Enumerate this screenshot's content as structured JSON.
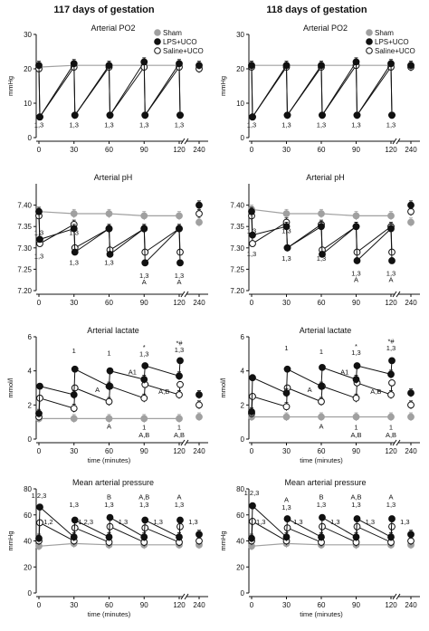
{
  "figure": {
    "column_titles": [
      "117 days of gestation",
      "118 days of gestation"
    ]
  },
  "legend": [
    {
      "name": "Sham",
      "fill": "#a0a0a0",
      "stroke": "#a0a0a0"
    },
    {
      "name": "LPS+UCO",
      "fill": "#111111",
      "stroke": "#111111"
    },
    {
      "name": "Saline+UCO",
      "fill": "#ffffff",
      "stroke": "#111111"
    }
  ],
  "chart_data": [
    {
      "type": "line",
      "col": 0,
      "row": 0,
      "title": "Arterial PO2",
      "ylabel": "mmHg",
      "xlabel": "",
      "ylim": [
        0,
        30
      ],
      "yticks": [
        0,
        10,
        20,
        30
      ],
      "ytick_labels": [
        "0",
        "10",
        "20",
        "30"
      ],
      "x": [
        0,
        30,
        60,
        90,
        120,
        240
      ],
      "xticks": [
        "0",
        "30",
        "60",
        "90",
        "120",
        "240"
      ],
      "series": [
        {
          "name": "Sham",
          "baseline": [
            20.5,
            21,
            21,
            21,
            21,
            20.5
          ],
          "uco": null
        },
        {
          "name": "LPS+UCO",
          "baseline": [
            21,
            21.5,
            21,
            22,
            21.5,
            21
          ],
          "uco": [
            6,
            6.5,
            6.5,
            6.5,
            6.5
          ]
        },
        {
          "name": "Saline+UCO",
          "baseline": [
            20,
            20.5,
            20.5,
            20.5,
            20.5,
            20
          ],
          "uco": [
            6,
            6.5,
            6.5,
            6.5,
            6.5
          ]
        }
      ],
      "annotations": [
        {
          "x": 0,
          "y": 3,
          "text": "1,3"
        },
        {
          "x": 30,
          "y": 3,
          "text": "1,3"
        },
        {
          "x": 60,
          "y": 3,
          "text": "1,3"
        },
        {
          "x": 90,
          "y": 3,
          "text": "1,3"
        },
        {
          "x": 120,
          "y": 3,
          "text": "1,3"
        }
      ]
    },
    {
      "type": "line",
      "col": 1,
      "row": 0,
      "title": "Arterial PO2",
      "ylabel": "mmHg",
      "xlabel": "",
      "ylim": [
        0,
        30
      ],
      "yticks": [
        0,
        10,
        20,
        30
      ],
      "ytick_labels": [
        "0",
        "10",
        "20",
        "30"
      ],
      "x": [
        0,
        30,
        60,
        90,
        120,
        240
      ],
      "xticks": [
        "0",
        "30",
        "60",
        "90",
        "120",
        "240"
      ],
      "series": [
        {
          "name": "Sham",
          "baseline": [
            21,
            21,
            21,
            21,
            21,
            21
          ],
          "uco": null
        },
        {
          "name": "LPS+UCO",
          "baseline": [
            21,
            21,
            21,
            22,
            21.5,
            21
          ],
          "uco": [
            6,
            6.5,
            6.5,
            6.5,
            6.5
          ]
        },
        {
          "name": "Saline+UCO",
          "baseline": [
            20.5,
            20.5,
            20.5,
            21,
            20.5,
            20.5
          ],
          "uco": [
            6,
            6.5,
            6.5,
            6.5,
            6.5
          ]
        }
      ],
      "annotations": [
        {
          "x": 0,
          "y": 3,
          "text": "1,3"
        },
        {
          "x": 30,
          "y": 3,
          "text": "1,3"
        },
        {
          "x": 60,
          "y": 3,
          "text": "1,3"
        },
        {
          "x": 90,
          "y": 3,
          "text": "1,3"
        },
        {
          "x": 120,
          "y": 3,
          "text": "1,3"
        }
      ]
    },
    {
      "type": "line",
      "col": 0,
      "row": 1,
      "title": "Arterial pH",
      "ylabel": "",
      "xlabel": "",
      "ylim": [
        7.2,
        7.45
      ],
      "yticks": [
        7.2,
        7.25,
        7.3,
        7.35,
        7.4
      ],
      "ytick_labels": [
        "7.20",
        "7.25",
        "7.30",
        "7.35",
        "7.40"
      ],
      "x": [
        0,
        30,
        60,
        90,
        120,
        240
      ],
      "xticks": [
        "0",
        "30",
        "60",
        "90",
        "120",
        "240"
      ],
      "series": [
        {
          "name": "Sham",
          "baseline": [
            7.385,
            7.38,
            7.38,
            7.375,
            7.375,
            7.36
          ],
          "uco": null
        },
        {
          "name": "LPS+UCO",
          "baseline": [
            7.385,
            7.345,
            7.345,
            7.345,
            7.345,
            7.4
          ],
          "uco": [
            7.32,
            7.29,
            7.285,
            7.265,
            7.265
          ]
        },
        {
          "name": "Saline+UCO",
          "baseline": [
            7.375,
            7.355,
            7.345,
            7.345,
            7.345,
            7.38
          ],
          "uco": [
            7.31,
            7.3,
            7.295,
            7.29,
            7.29
          ]
        }
      ],
      "annotations": [
        {
          "x": 0,
          "y": 7.33,
          "text": "1,3"
        },
        {
          "x": 30,
          "y": 7.33,
          "text": "1,3"
        },
        {
          "x": 0,
          "y": 7.275,
          "text": "1,3"
        },
        {
          "x": 30,
          "y": 7.26,
          "text": "1,3"
        },
        {
          "x": 60,
          "y": 7.26,
          "text": "1,3"
        },
        {
          "x": 90,
          "y": 7.23,
          "text": "1,3"
        },
        {
          "x": 90,
          "y": 7.215,
          "text": "A"
        },
        {
          "x": 120,
          "y": 7.23,
          "text": "1,3"
        },
        {
          "x": 120,
          "y": 7.215,
          "text": "A"
        }
      ]
    },
    {
      "type": "line",
      "col": 1,
      "row": 1,
      "title": "Arterial pH",
      "ylabel": "",
      "xlabel": "",
      "ylim": [
        7.2,
        7.45
      ],
      "yticks": [
        7.2,
        7.25,
        7.3,
        7.35,
        7.4
      ],
      "ytick_labels": [
        "7.20",
        "7.25",
        "7.30",
        "7.35",
        "7.40"
      ],
      "x": [
        0,
        30,
        60,
        90,
        120,
        240
      ],
      "xticks": [
        "0",
        "30",
        "60",
        "90",
        "120",
        "240"
      ],
      "series": [
        {
          "name": "Sham",
          "baseline": [
            7.39,
            7.38,
            7.38,
            7.375,
            7.375,
            7.36
          ],
          "uco": null
        },
        {
          "name": "LPS+UCO",
          "baseline": [
            7.385,
            7.35,
            7.35,
            7.35,
            7.345,
            7.4
          ],
          "uco": [
            7.33,
            7.3,
            7.285,
            7.27,
            7.27
          ]
        },
        {
          "name": "Saline+UCO",
          "baseline": [
            7.375,
            7.36,
            7.355,
            7.35,
            7.35,
            7.385
          ],
          "uco": [
            7.31,
            7.3,
            7.295,
            7.29,
            7.29
          ]
        }
      ],
      "annotations": [
        {
          "x": 0,
          "y": 7.335,
          "text": "1,3"
        },
        {
          "x": 30,
          "y": 7.335,
          "text": "1,3"
        },
        {
          "x": 0,
          "y": 7.28,
          "text": "1,3"
        },
        {
          "x": 30,
          "y": 7.27,
          "text": "1,3"
        },
        {
          "x": 60,
          "y": 7.27,
          "text": "1,3"
        },
        {
          "x": 90,
          "y": 7.235,
          "text": "1,3"
        },
        {
          "x": 90,
          "y": 7.22,
          "text": "A"
        },
        {
          "x": 120,
          "y": 7.235,
          "text": "1,3"
        },
        {
          "x": 120,
          "y": 7.22,
          "text": "A"
        }
      ]
    },
    {
      "type": "line",
      "col": 0,
      "row": 2,
      "title": "Arterial lactate",
      "ylabel": "mmol/l",
      "xlabel": "time (minutes)",
      "ylim": [
        0,
        6
      ],
      "yticks": [
        0,
        2,
        4,
        6
      ],
      "ytick_labels": [
        "0",
        "2",
        "4",
        "6"
      ],
      "x": [
        0,
        30,
        60,
        90,
        120,
        240
      ],
      "xticks": [
        "0",
        "30",
        "60",
        "90",
        "120",
        "240"
      ],
      "series": [
        {
          "name": "Sham",
          "baseline": [
            1.2,
            1.2,
            1.2,
            1.2,
            1.2,
            1.3
          ],
          "uco": null
        },
        {
          "name": "LPS+UCO",
          "baseline": [
            1.5,
            2.6,
            3.1,
            3.5,
            3.7,
            2.6
          ],
          "uco": [
            3.1,
            4.1,
            4.0,
            4.3,
            4.6
          ]
        },
        {
          "name": "Saline+UCO",
          "baseline": [
            1.3,
            1.8,
            2.2,
            2.4,
            2.6,
            2.0
          ],
          "uco": [
            2.4,
            3.0,
            3.1,
            3.2,
            3.2
          ]
        }
      ],
      "annotations": [
        {
          "x": 30,
          "y": 5.05,
          "text": "1"
        },
        {
          "x": 60,
          "y": 4.9,
          "text": "1"
        },
        {
          "x": 90,
          "y": 5.25,
          "text": "*"
        },
        {
          "x": 90,
          "y": 4.85,
          "text": "1,3"
        },
        {
          "x": 120,
          "y": 5.5,
          "text": "*#"
        },
        {
          "x": 120,
          "y": 5.1,
          "text": "1,3"
        },
        {
          "x": 50,
          "y": 2.75,
          "text": "A"
        },
        {
          "x": 80,
          "y": 3.8,
          "text": "A1"
        },
        {
          "x": 107,
          "y": 2.65,
          "text": "A,B"
        },
        {
          "x": 60,
          "y": 0.6,
          "text": "A"
        },
        {
          "x": 90,
          "y": 0.55,
          "text": "1"
        },
        {
          "x": 90,
          "y": 0.1,
          "text": "A,B"
        },
        {
          "x": 120,
          "y": 0.55,
          "text": "1"
        },
        {
          "x": 120,
          "y": 0.1,
          "text": "A,B"
        }
      ]
    },
    {
      "type": "line",
      "col": 1,
      "row": 2,
      "title": "Arterial lactate",
      "ylabel": "mmol/l",
      "xlabel": "time (minutes)",
      "ylim": [
        0,
        6
      ],
      "yticks": [
        0,
        2,
        4,
        6
      ],
      "ytick_labels": [
        "0",
        "2",
        "4",
        "6"
      ],
      "x": [
        0,
        30,
        60,
        90,
        120,
        240
      ],
      "xticks": [
        "0",
        "30",
        "60",
        "90",
        "120",
        "240"
      ],
      "series": [
        {
          "name": "Sham",
          "baseline": [
            1.3,
            1.3,
            1.3,
            1.3,
            1.3,
            1.3
          ],
          "uco": null
        },
        {
          "name": "LPS+UCO",
          "baseline": [
            1.6,
            2.7,
            3.1,
            3.5,
            3.8,
            2.7
          ],
          "uco": [
            3.6,
            4.1,
            4.2,
            4.3,
            4.6
          ]
        },
        {
          "name": "Saline+UCO",
          "baseline": [
            1.5,
            1.9,
            2.2,
            2.4,
            2.6,
            2.0
          ],
          "uco": [
            2.5,
            3.0,
            3.1,
            3.3,
            3.3
          ]
        }
      ],
      "annotations": [
        {
          "x": 30,
          "y": 5.2,
          "text": "1"
        },
        {
          "x": 60,
          "y": 5.0,
          "text": "1"
        },
        {
          "x": 90,
          "y": 5.3,
          "text": "*"
        },
        {
          "x": 90,
          "y": 4.95,
          "text": "1,3"
        },
        {
          "x": 120,
          "y": 5.6,
          "text": "*#"
        },
        {
          "x": 120,
          "y": 5.2,
          "text": "1,3"
        },
        {
          "x": 50,
          "y": 2.75,
          "text": "A"
        },
        {
          "x": 80,
          "y": 3.8,
          "text": "A1"
        },
        {
          "x": 107,
          "y": 2.65,
          "text": "A,B"
        },
        {
          "x": 60,
          "y": 0.6,
          "text": "A"
        },
        {
          "x": 90,
          "y": 0.55,
          "text": "1"
        },
        {
          "x": 90,
          "y": 0.1,
          "text": "A,B"
        },
        {
          "x": 120,
          "y": 0.55,
          "text": "1"
        },
        {
          "x": 120,
          "y": 0.1,
          "text": "A,B"
        }
      ]
    },
    {
      "type": "line",
      "col": 0,
      "row": 3,
      "title": "Mean arterial pressure",
      "ylabel": "mmHg",
      "xlabel": "time (minutes)",
      "ylim": [
        0,
        80
      ],
      "yticks": [
        0,
        20,
        40,
        60,
        80
      ],
      "ytick_labels": [
        "0",
        "20",
        "40",
        "60",
        "80"
      ],
      "x": [
        0,
        30,
        60,
        90,
        120,
        240
      ],
      "xticks": [
        "0",
        "30",
        "60",
        "90",
        "120",
        "240"
      ],
      "series": [
        {
          "name": "Sham",
          "baseline": [
            36,
            38,
            37,
            37,
            37,
            37
          ],
          "uco": null
        },
        {
          "name": "LPS+UCO",
          "baseline": [
            42,
            43,
            43,
            43,
            43,
            45
          ],
          "uco": [
            66,
            56,
            58,
            56,
            56
          ]
        },
        {
          "name": "Saline+UCO",
          "baseline": [
            40,
            40,
            39,
            39,
            39,
            40
          ],
          "uco": [
            54,
            50,
            51,
            50,
            51
          ]
        }
      ],
      "annotations": [
        {
          "x": 0,
          "y": 73,
          "text": "1,2,3"
        },
        {
          "x": 8,
          "y": 53,
          "text": "1,2"
        },
        {
          "x": 30,
          "y": 66,
          "text": "1,3"
        },
        {
          "x": 40,
          "y": 53,
          "text": "1,2,3"
        },
        {
          "x": 60,
          "y": 72,
          "text": "B"
        },
        {
          "x": 60,
          "y": 66,
          "text": "1,3"
        },
        {
          "x": 72,
          "y": 53,
          "text": "1,3"
        },
        {
          "x": 90,
          "y": 72,
          "text": "A,B"
        },
        {
          "x": 90,
          "y": 66,
          "text": "1,3"
        },
        {
          "x": 102,
          "y": 53,
          "text": "1,3"
        },
        {
          "x": 120,
          "y": 72,
          "text": "A"
        },
        {
          "x": 120,
          "y": 66,
          "text": "1,3"
        },
        {
          "x": 132,
          "y": 53,
          "text": "1,3"
        }
      ]
    },
    {
      "type": "line",
      "col": 1,
      "row": 3,
      "title": "Mean arterial pressure",
      "ylabel": "mmHg",
      "xlabel": "time (minutes)",
      "ylim": [
        0,
        80
      ],
      "yticks": [
        0,
        20,
        40,
        60,
        80
      ],
      "ytick_labels": [
        "0",
        "20",
        "40",
        "60",
        "80"
      ],
      "x": [
        0,
        30,
        60,
        90,
        120,
        240
      ],
      "xticks": [
        "0",
        "30",
        "60",
        "90",
        "120",
        "240"
      ],
      "series": [
        {
          "name": "Sham",
          "baseline": [
            36,
            38,
            37,
            37,
            37,
            37
          ],
          "uco": null
        },
        {
          "name": "LPS+UCO",
          "baseline": [
            42,
            43,
            43,
            43,
            43,
            45
          ],
          "uco": [
            67,
            57,
            58,
            57,
            57
          ]
        },
        {
          "name": "Saline+UCO",
          "baseline": [
            40,
            40,
            39,
            39,
            39,
            40
          ],
          "uco": [
            55,
            50,
            51,
            51,
            51
          ]
        }
      ],
      "annotations": [
        {
          "x": 0,
          "y": 75,
          "text": "1,2,3"
        },
        {
          "x": 8,
          "y": 53,
          "text": "1,3"
        },
        {
          "x": 30,
          "y": 70,
          "text": "A"
        },
        {
          "x": 30,
          "y": 64,
          "text": "1,3"
        },
        {
          "x": 40,
          "y": 53,
          "text": "1,3"
        },
        {
          "x": 60,
          "y": 72,
          "text": "B"
        },
        {
          "x": 60,
          "y": 66,
          "text": "1,3"
        },
        {
          "x": 72,
          "y": 53,
          "text": "1,3"
        },
        {
          "x": 90,
          "y": 72,
          "text": "A,B"
        },
        {
          "x": 90,
          "y": 66,
          "text": "1,3"
        },
        {
          "x": 102,
          "y": 53,
          "text": "1,3"
        },
        {
          "x": 120,
          "y": 72,
          "text": "A"
        },
        {
          "x": 120,
          "y": 66,
          "text": "1,3"
        },
        {
          "x": 132,
          "y": 53,
          "text": "1,3"
        }
      ]
    }
  ]
}
